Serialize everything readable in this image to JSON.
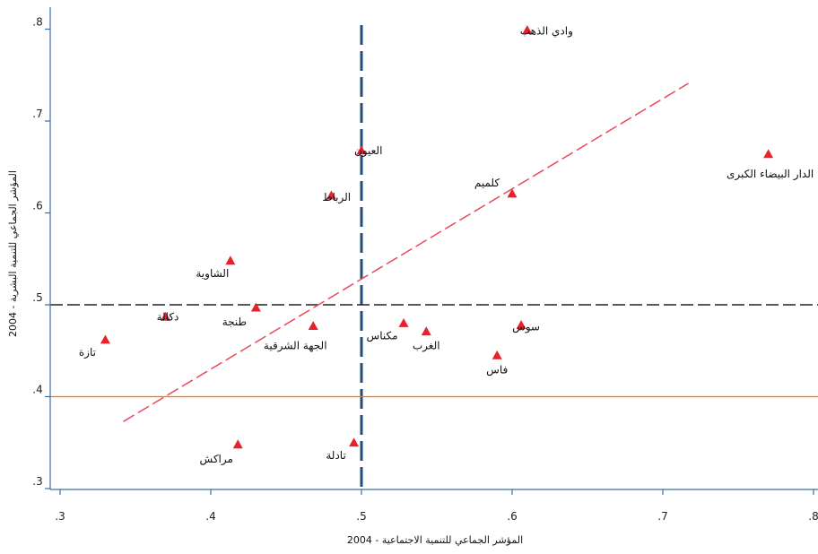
{
  "chart_data": {
    "type": "scatter",
    "title": "",
    "xlabel": "المؤشر الجماعي للتنمية الاجتماعية - 2004",
    "ylabel": "المؤشر الجماعي للتنمية البشرية - 2004",
    "xlim": [
      0.29,
      0.81
    ],
    "ylim": [
      0.29,
      0.81
    ],
    "x_ticks": [
      0.3,
      0.4,
      0.5,
      0.6,
      0.7,
      0.8
    ],
    "x_tick_labels": [
      ".3",
      ".4",
      ".5",
      ".6",
      ".7",
      ".8"
    ],
    "y_ticks": [
      0.3,
      0.4,
      0.5,
      0.6,
      0.7,
      0.8
    ],
    "y_tick_labels": [
      ".3",
      ".4",
      ".5",
      ".6",
      ".7",
      ".8"
    ],
    "grid": false,
    "marker": "triangle",
    "marker_color": "#e8212b",
    "points": [
      {
        "label": "وادي الذهب",
        "x": 0.61,
        "y": 0.799
      },
      {
        "label": "العيون",
        "x": 0.5,
        "y": 0.668
      },
      {
        "label": "الدار البيضاء الكبرى",
        "x": 0.77,
        "y": 0.664
      },
      {
        "label": "كلميم",
        "x": 0.6,
        "y": 0.621
      },
      {
        "label": "الرباط",
        "x": 0.48,
        "y": 0.619
      },
      {
        "label": "الشاوية",
        "x": 0.413,
        "y": 0.548
      },
      {
        "label": "طنجة",
        "x": 0.43,
        "y": 0.497
      },
      {
        "label": "دكالة",
        "x": 0.37,
        "y": 0.487
      },
      {
        "label": "الجهة الشرقية",
        "x": 0.468,
        "y": 0.477
      },
      {
        "label": "مكناس",
        "x": 0.528,
        "y": 0.48
      },
      {
        "label": "سوس",
        "x": 0.606,
        "y": 0.478
      },
      {
        "label": "الغرب",
        "x": 0.543,
        "y": 0.471
      },
      {
        "label": "تازة",
        "x": 0.33,
        "y": 0.462
      },
      {
        "label": "فاس",
        "x": 0.59,
        "y": 0.445
      },
      {
        "label": "مراكش",
        "x": 0.418,
        "y": 0.348
      },
      {
        "label": "تادلة",
        "x": 0.495,
        "y": 0.35
      }
    ],
    "reference_lines": [
      {
        "orientation": "vertical",
        "value": 0.5,
        "style": "long-dash",
        "color": "#1f4e79"
      },
      {
        "orientation": "horizontal",
        "value": 0.5,
        "style": "dash",
        "color": "#222222"
      },
      {
        "orientation": "horizontal",
        "value": 0.4,
        "style": "solid",
        "color": "#b8865a"
      }
    ],
    "fit_line": {
      "style": "dash",
      "color": "#e84a5a",
      "x": [
        0.342,
        0.717
      ],
      "y": [
        0.373,
        0.741
      ]
    },
    "axis_color": "#3a6fa8"
  }
}
